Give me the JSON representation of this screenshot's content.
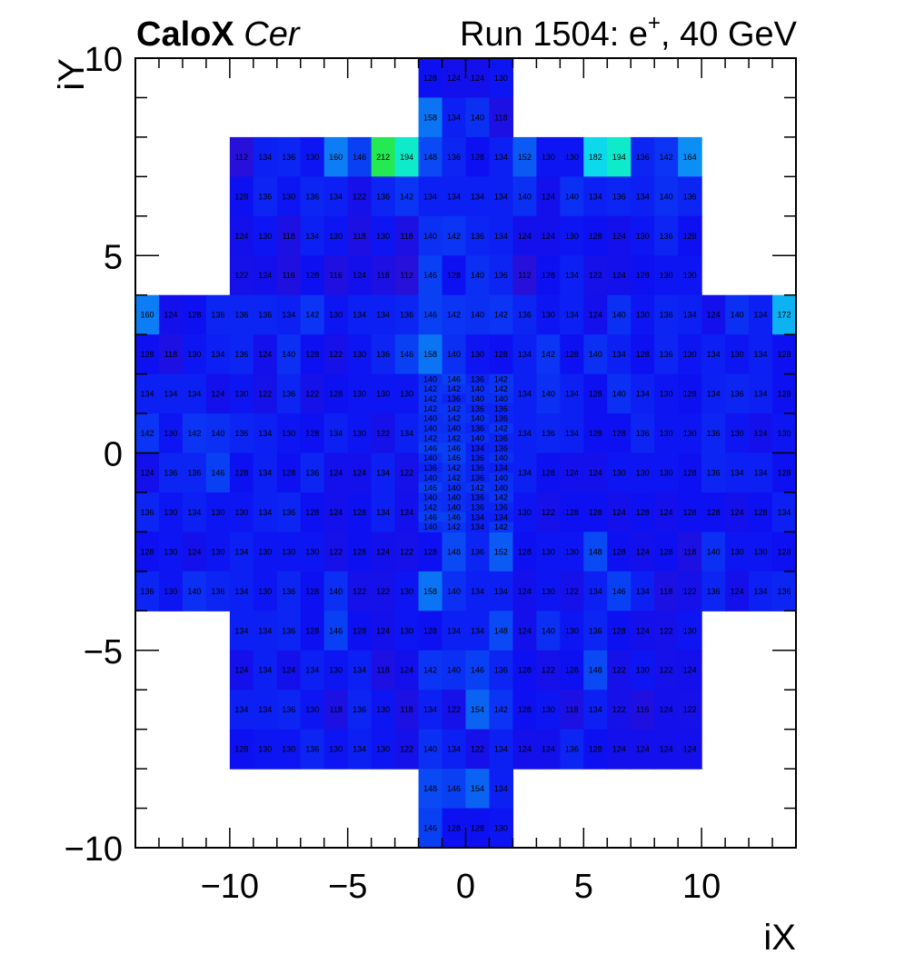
{
  "header": {
    "experiment": "CaloX",
    "channel": "Cer",
    "run_prefix": "Run 1504: e",
    "run_particle_sup": "+",
    "run_suffix": ", 40 GeV"
  },
  "chart_data": {
    "type": "heatmap",
    "title": "",
    "xlabel": "iX",
    "ylabel": "iY",
    "xlim": [
      -14,
      14
    ],
    "ylim": [
      -10,
      10
    ],
    "x_ticks": [
      "−10",
      "−5",
      "0",
      "5",
      "10"
    ],
    "y_ticks": [
      "10",
      "5",
      "0",
      "−5",
      "−10"
    ],
    "colormap": "blue-cyan-green",
    "color_stops": [
      "#2a10d6",
      "#0d10f2",
      "#0a3cf4",
      "#0c88f4",
      "#0cd6f0",
      "#10f0c0",
      "#28e83c"
    ],
    "value_range": [
      110,
      215
    ],
    "towers": [
      {
        "y": 9,
        "x0": -2,
        "v": [
          128,
          124,
          124,
          130
        ]
      },
      {
        "y": 8,
        "x0": -2,
        "v": [
          158,
          134,
          140,
          118
        ]
      },
      {
        "y": 7,
        "x0": -10,
        "v": [
          112,
          134,
          136,
          130,
          160,
          146,
          212,
          194,
          148,
          136,
          128,
          134,
          152,
          130,
          130,
          182,
          194,
          136,
          142,
          164
        ]
      },
      {
        "y": 6,
        "x0": -10,
        "v": [
          128,
          136,
          130,
          136,
          134,
          122,
          136,
          142,
          134,
          134,
          134,
          134,
          140,
          124,
          140,
          134,
          136,
          134,
          140,
          136
        ]
      },
      {
        "y": 5,
        "x0": -10,
        "v": [
          124,
          130,
          118,
          134,
          130,
          118,
          130,
          118,
          140,
          142,
          136,
          134,
          124,
          124,
          130,
          128,
          124,
          130,
          136,
          128
        ]
      },
      {
        "y": 4,
        "x0": -10,
        "v": [
          122,
          124,
          116,
          128,
          116,
          124,
          118,
          112,
          146,
          128,
          140,
          136,
          112,
          128,
          134,
          122,
          124,
          128,
          130,
          130
        ]
      },
      {
        "y": 3,
        "x0": -14,
        "v": [
          160,
          124,
          128,
          136,
          136,
          136,
          134,
          142,
          130,
          134,
          134,
          136,
          146,
          142,
          140,
          142,
          136,
          130,
          134,
          124,
          140,
          130,
          136,
          134,
          124,
          140,
          134,
          172
        ]
      },
      {
        "y": 2,
        "x0": -14,
        "v": [
          128,
          118,
          130,
          134,
          136,
          124,
          140,
          128,
          122,
          130,
          136,
          146,
          158,
          140,
          130,
          128,
          134,
          142,
          128,
          140,
          134,
          128,
          136,
          130,
          134,
          130,
          134,
          128
        ]
      },
      {
        "y": 1,
        "x0": -14,
        "v": [
          134,
          134,
          134,
          124,
          130,
          122,
          136,
          122,
          128,
          130,
          130,
          130,
          null,
          null,
          null,
          null,
          134,
          140,
          134,
          128,
          140,
          134,
          130,
          128,
          134,
          136,
          134,
          128
        ]
      },
      {
        "y": 0,
        "x0": -14,
        "v": [
          142,
          130,
          142,
          140,
          136,
          134,
          130,
          128,
          134,
          130,
          122,
          134,
          null,
          null,
          null,
          null,
          134,
          136,
          134,
          128,
          128,
          136,
          130,
          130,
          136,
          130,
          124,
          130
        ]
      },
      {
        "y": -1,
        "x0": -14,
        "v": [
          124,
          136,
          136,
          146,
          128,
          134,
          128,
          136,
          124,
          124,
          134,
          122,
          null,
          null,
          null,
          null,
          134,
          128,
          124,
          124,
          130,
          130,
          130,
          128,
          136,
          134,
          134,
          128
        ]
      },
      {
        "y": -2,
        "x0": -14,
        "v": [
          136,
          130,
          134,
          130,
          130,
          134,
          136,
          128,
          124,
          128,
          134,
          124,
          null,
          null,
          null,
          null,
          130,
          122,
          128,
          128,
          124,
          128,
          124,
          128,
          128,
          124,
          128,
          134
        ]
      },
      {
        "y": -3,
        "x0": -14,
        "v": [
          128,
          130,
          124,
          130,
          134,
          130,
          130,
          130,
          122,
          128,
          124,
          122,
          128,
          148,
          136,
          152,
          128,
          130,
          130,
          148,
          128,
          124,
          128,
          118,
          140,
          130,
          130,
          128
        ]
      },
      {
        "y": -4,
        "x0": -14,
        "v": [
          136,
          130,
          140,
          136,
          134,
          130,
          136,
          128,
          140,
          122,
          122,
          130,
          158,
          140,
          134,
          134,
          124,
          130,
          122,
          134,
          146,
          134,
          118,
          122,
          136,
          124,
          134,
          136
        ]
      },
      {
        "y": -5,
        "x0": -10,
        "v": [
          134,
          134,
          136,
          128,
          146,
          128,
          124,
          130,
          128,
          134,
          134,
          148,
          124,
          140,
          130,
          136,
          128,
          124,
          122,
          130
        ]
      },
      {
        "y": -6,
        "x0": -10,
        "v": [
          124,
          134,
          124,
          134,
          130,
          134,
          118,
          124,
          142,
          140,
          146,
          136,
          128,
          122,
          128,
          148,
          122,
          130,
          122,
          124
        ]
      },
      {
        "y": -7,
        "x0": -10,
        "v": [
          134,
          134,
          136,
          130,
          118,
          136,
          130,
          118,
          134,
          122,
          154,
          142,
          128,
          130,
          118,
          134,
          122,
          116,
          124,
          122
        ]
      },
      {
        "y": -8,
        "x0": -10,
        "v": [
          128,
          130,
          130,
          136,
          130,
          134,
          130,
          122,
          140,
          134,
          122,
          134,
          124,
          124,
          136,
          128,
          124,
          124,
          124,
          124
        ]
      },
      {
        "y": -9,
        "x0": -2,
        "v": [
          148,
          146,
          154,
          134
        ]
      },
      {
        "y": -10,
        "x0": -2,
        "v": [
          146,
          128,
          128,
          130
        ]
      }
    ],
    "fine_grid": {
      "x0": -2,
      "x1": 2,
      "y_top": 2,
      "y_bottom": -2,
      "rows": [
        [
          140,
          146,
          136,
          142
        ],
        [
          142,
          142,
          140,
          142
        ],
        [
          142,
          136,
          140,
          140
        ],
        [
          142,
          142,
          136,
          136
        ],
        [
          140,
          142,
          140,
          136
        ],
        [
          140,
          140,
          136,
          142
        ],
        [
          142,
          142,
          140,
          136
        ],
        [
          146,
          146,
          134,
          136
        ],
        [
          140,
          146,
          136,
          140
        ],
        [
          136,
          142,
          136,
          134
        ],
        [
          140,
          142,
          136,
          140
        ],
        [
          146,
          140,
          142,
          140
        ],
        [
          140,
          140,
          136,
          142
        ],
        [
          142,
          140,
          136,
          136
        ],
        [
          146,
          146,
          134,
          134
        ],
        [
          140,
          142,
          134,
          142
        ]
      ]
    }
  }
}
